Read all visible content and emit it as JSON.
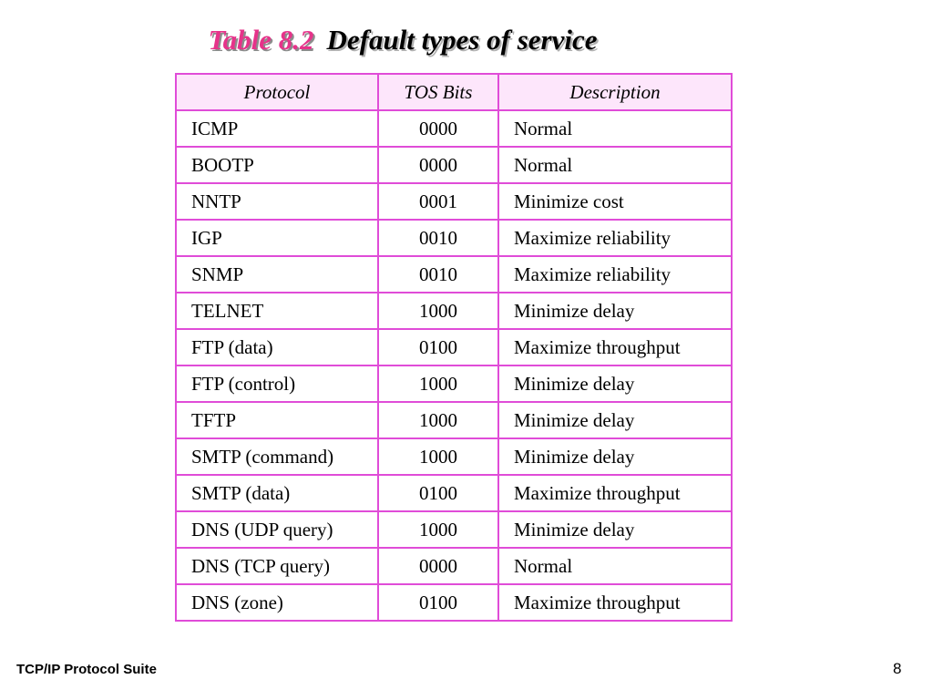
{
  "title": {
    "number": "Table 8.2",
    "text": "Default types of service"
  },
  "table": {
    "headers": [
      "Protocol",
      "TOS Bits",
      "Description"
    ],
    "rows": [
      [
        "ICMP",
        "0000",
        "Normal"
      ],
      [
        "BOOTP",
        "0000",
        "Normal"
      ],
      [
        "NNTP",
        "0001",
        "Minimize cost"
      ],
      [
        "IGP",
        "0010",
        "Maximize reliability"
      ],
      [
        "SNMP",
        "0010",
        "Maximize reliability"
      ],
      [
        "TELNET",
        "1000",
        "Minimize delay"
      ],
      [
        "FTP (data)",
        "0100",
        "Maximize throughput"
      ],
      [
        "FTP (control)",
        "1000",
        "Minimize delay"
      ],
      [
        "TFTP",
        "1000",
        "Minimize delay"
      ],
      [
        "SMTP (command)",
        "1000",
        "Minimize delay"
      ],
      [
        "SMTP (data)",
        "0100",
        "Maximize throughput"
      ],
      [
        "DNS (UDP query)",
        "1000",
        "Minimize delay"
      ],
      [
        "DNS (TCP query)",
        "0000",
        "Normal"
      ],
      [
        "DNS (zone)",
        "0100",
        "Maximize throughput"
      ]
    ]
  },
  "footer": {
    "label": "TCP/IP Protocol Suite",
    "page": "8"
  },
  "colors": {
    "title_accent": "#e6338a",
    "table_border": "#e04cd8",
    "header_background": "#fde6fb"
  }
}
